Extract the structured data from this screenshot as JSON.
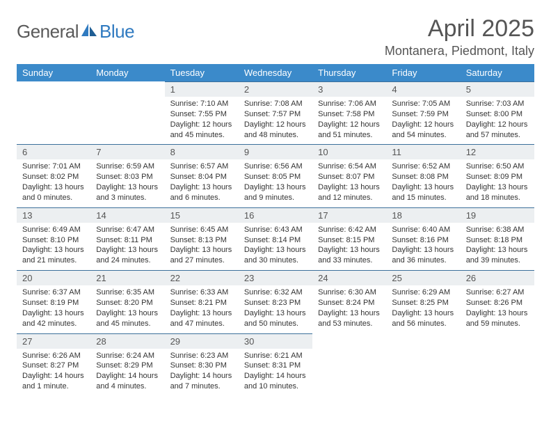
{
  "brand": {
    "part1": "General",
    "part2": "Blue"
  },
  "title": "April 2025",
  "location": "Montanera, Piedmont, Italy",
  "colors": {
    "header_bg": "#3b8aca",
    "header_text": "#ffffff",
    "daynum_bg": "#eceff1",
    "daynum_border": "#3b6f9a",
    "text": "#333333",
    "title": "#555555"
  },
  "weekdays": [
    "Sunday",
    "Monday",
    "Tuesday",
    "Wednesday",
    "Thursday",
    "Friday",
    "Saturday"
  ],
  "layout": {
    "first_weekday_index": 2,
    "days_in_month": 30
  },
  "days": {
    "1": {
      "sunrise": "7:10 AM",
      "sunset": "7:55 PM",
      "daylight": "12 hours and 45 minutes."
    },
    "2": {
      "sunrise": "7:08 AM",
      "sunset": "7:57 PM",
      "daylight": "12 hours and 48 minutes."
    },
    "3": {
      "sunrise": "7:06 AM",
      "sunset": "7:58 PM",
      "daylight": "12 hours and 51 minutes."
    },
    "4": {
      "sunrise": "7:05 AM",
      "sunset": "7:59 PM",
      "daylight": "12 hours and 54 minutes."
    },
    "5": {
      "sunrise": "7:03 AM",
      "sunset": "8:00 PM",
      "daylight": "12 hours and 57 minutes."
    },
    "6": {
      "sunrise": "7:01 AM",
      "sunset": "8:02 PM",
      "daylight": "13 hours and 0 minutes."
    },
    "7": {
      "sunrise": "6:59 AM",
      "sunset": "8:03 PM",
      "daylight": "13 hours and 3 minutes."
    },
    "8": {
      "sunrise": "6:57 AM",
      "sunset": "8:04 PM",
      "daylight": "13 hours and 6 minutes."
    },
    "9": {
      "sunrise": "6:56 AM",
      "sunset": "8:05 PM",
      "daylight": "13 hours and 9 minutes."
    },
    "10": {
      "sunrise": "6:54 AM",
      "sunset": "8:07 PM",
      "daylight": "13 hours and 12 minutes."
    },
    "11": {
      "sunrise": "6:52 AM",
      "sunset": "8:08 PM",
      "daylight": "13 hours and 15 minutes."
    },
    "12": {
      "sunrise": "6:50 AM",
      "sunset": "8:09 PM",
      "daylight": "13 hours and 18 minutes."
    },
    "13": {
      "sunrise": "6:49 AM",
      "sunset": "8:10 PM",
      "daylight": "13 hours and 21 minutes."
    },
    "14": {
      "sunrise": "6:47 AM",
      "sunset": "8:11 PM",
      "daylight": "13 hours and 24 minutes."
    },
    "15": {
      "sunrise": "6:45 AM",
      "sunset": "8:13 PM",
      "daylight": "13 hours and 27 minutes."
    },
    "16": {
      "sunrise": "6:43 AM",
      "sunset": "8:14 PM",
      "daylight": "13 hours and 30 minutes."
    },
    "17": {
      "sunrise": "6:42 AM",
      "sunset": "8:15 PM",
      "daylight": "13 hours and 33 minutes."
    },
    "18": {
      "sunrise": "6:40 AM",
      "sunset": "8:16 PM",
      "daylight": "13 hours and 36 minutes."
    },
    "19": {
      "sunrise": "6:38 AM",
      "sunset": "8:18 PM",
      "daylight": "13 hours and 39 minutes."
    },
    "20": {
      "sunrise": "6:37 AM",
      "sunset": "8:19 PM",
      "daylight": "13 hours and 42 minutes."
    },
    "21": {
      "sunrise": "6:35 AM",
      "sunset": "8:20 PM",
      "daylight": "13 hours and 45 minutes."
    },
    "22": {
      "sunrise": "6:33 AM",
      "sunset": "8:21 PM",
      "daylight": "13 hours and 47 minutes."
    },
    "23": {
      "sunrise": "6:32 AM",
      "sunset": "8:23 PM",
      "daylight": "13 hours and 50 minutes."
    },
    "24": {
      "sunrise": "6:30 AM",
      "sunset": "8:24 PM",
      "daylight": "13 hours and 53 minutes."
    },
    "25": {
      "sunrise": "6:29 AM",
      "sunset": "8:25 PM",
      "daylight": "13 hours and 56 minutes."
    },
    "26": {
      "sunrise": "6:27 AM",
      "sunset": "8:26 PM",
      "daylight": "13 hours and 59 minutes."
    },
    "27": {
      "sunrise": "6:26 AM",
      "sunset": "8:27 PM",
      "daylight": "14 hours and 1 minute."
    },
    "28": {
      "sunrise": "6:24 AM",
      "sunset": "8:29 PM",
      "daylight": "14 hours and 4 minutes."
    },
    "29": {
      "sunrise": "6:23 AM",
      "sunset": "8:30 PM",
      "daylight": "14 hours and 7 minutes."
    },
    "30": {
      "sunrise": "6:21 AM",
      "sunset": "8:31 PM",
      "daylight": "14 hours and 10 minutes."
    }
  },
  "labels": {
    "sunrise": "Sunrise: ",
    "sunset": "Sunset: ",
    "daylight": "Daylight: "
  }
}
